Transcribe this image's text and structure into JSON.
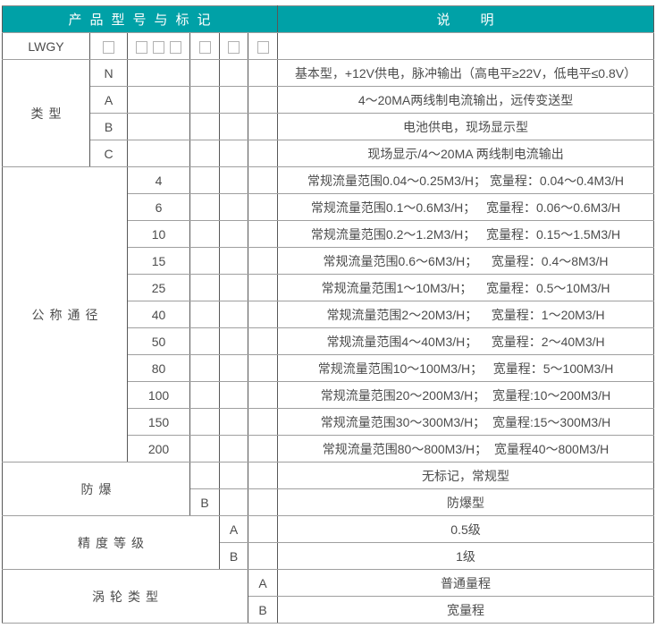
{
  "colors": {
    "header_bg": "#00a1a7",
    "header_text": "#ffffff"
  },
  "header": {
    "model_title": "产品型号与标记",
    "desc_title": "说明"
  },
  "model_row": {
    "code": "LWGY",
    "box_groups": [
      1,
      3,
      1,
      1,
      1
    ]
  },
  "sections": {
    "type": {
      "label": "类型",
      "rows": [
        {
          "code": "N",
          "desc": "基本型，+12V供电，脉冲输出（高电平≥22V，低电平≤0.8V）"
        },
        {
          "code": "A",
          "desc": "4～20MA两线制电流输出，远传变送型"
        },
        {
          "code": "B",
          "desc": "电池供电，现场显示型"
        },
        {
          "code": "C",
          "desc": "现场显示/4～20MA 两线制电流输出"
        }
      ]
    },
    "diameter": {
      "label": "公称通径",
      "rows": [
        {
          "code": "4",
          "desc": "常规流量范围0.04～0.25M3/H； 宽量程：0.04～0.4M3/H"
        },
        {
          "code": "6",
          "desc": "常规流量范围0.1～0.6M3/H；   宽量程：0.06～0.6M3/H"
        },
        {
          "code": "10",
          "desc": "常规流量范围0.2～1.2M3/H；   宽量程：0.15～1.5M3/H"
        },
        {
          "code": "15",
          "desc": "常规流量范围0.6～6M3/H；    宽量程：0.4～8M3/H"
        },
        {
          "code": "25",
          "desc": "常规流量范围1～10M3/H；    宽量程：0.5～10M3/H"
        },
        {
          "code": "40",
          "desc": "常规流量范围2～20M3/H；    宽量程：1～20M3/H"
        },
        {
          "code": "50",
          "desc": "常规流量范围4～40M3/H；    宽量程：2～40M3/H"
        },
        {
          "code": "80",
          "desc": "常规流量范围10～100M3/H；   宽量程：5～100M3/H"
        },
        {
          "code": "100",
          "desc": "常规流量范围20～200M3/H；  宽量程:10～200M3/H"
        },
        {
          "code": "150",
          "desc": "常规流量范围30～300M3/H；  宽量程:15～300M3/H"
        },
        {
          "code": "200",
          "desc": "常规流量范围80～800M3/H；  宽量程40～800M3/H"
        }
      ]
    },
    "explosion": {
      "label": "防爆",
      "rows": [
        {
          "code": "",
          "desc": "无标记，常规型"
        },
        {
          "code": "B",
          "desc": "防爆型"
        }
      ]
    },
    "accuracy": {
      "label": "精度等级",
      "rows": [
        {
          "code": "A",
          "desc": "0.5级"
        },
        {
          "code": "B",
          "desc": "1级"
        }
      ]
    },
    "turbine": {
      "label": "涡轮类型",
      "rows": [
        {
          "code": "A",
          "desc": "普通量程"
        },
        {
          "code": "B",
          "desc": "宽量程"
        }
      ]
    }
  }
}
